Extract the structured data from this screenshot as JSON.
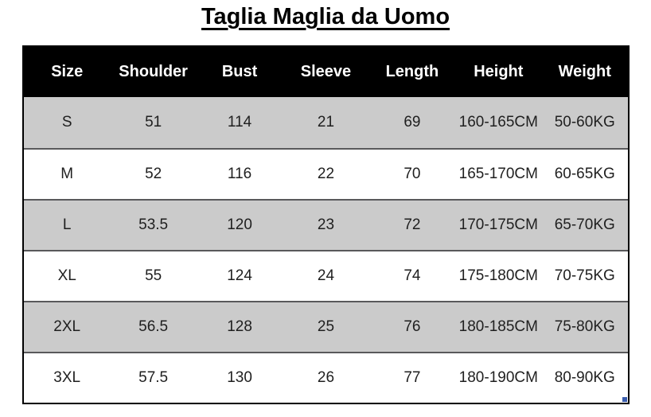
{
  "page": {
    "title": "Taglia Maglia da Uomo"
  },
  "colors": {
    "header_bg": "#000000",
    "header_text": "#ffffff",
    "row_shaded_bg": "#cbcbcb",
    "row_plain_bg": "#ffffff",
    "row_separator": "#59595b",
    "table_border": "#000000",
    "cell_text": "#1f1f1f",
    "fill_handle": "#3a5dae"
  },
  "chart_data": {
    "type": "table",
    "title": "Taglia Maglia da Uomo",
    "columns": [
      "Size",
      "Shoulder",
      "Bust",
      "Sleeve",
      "Length",
      "Height",
      "Weight"
    ],
    "rows": [
      {
        "shaded": true,
        "cells": [
          "S",
          "51",
          "114",
          "21",
          "69",
          "160-165CM",
          "50-60KG"
        ]
      },
      {
        "shaded": false,
        "cells": [
          "M",
          "52",
          "116",
          "22",
          "70",
          "165-170CM",
          "60-65KG"
        ]
      },
      {
        "shaded": true,
        "cells": [
          "L",
          "53.5",
          "120",
          "23",
          "72",
          "170-175CM",
          "65-70KG"
        ]
      },
      {
        "shaded": false,
        "cells": [
          "XL",
          "55",
          "124",
          "24",
          "74",
          "175-180CM",
          "70-75KG"
        ]
      },
      {
        "shaded": true,
        "cells": [
          "2XL",
          "56.5",
          "128",
          "25",
          "76",
          "180-185CM",
          "75-80KG"
        ]
      },
      {
        "shaded": false,
        "cells": [
          "3XL",
          "57.5",
          "130",
          "26",
          "77",
          "180-190CM",
          "80-90KG"
        ]
      }
    ],
    "layout_hints": {
      "header_style": "black bar, white bold text",
      "row_striping": "gray/white alternating starting with gray",
      "column_alignment": "center",
      "grid": "outer black border, horizontal separators only"
    }
  }
}
